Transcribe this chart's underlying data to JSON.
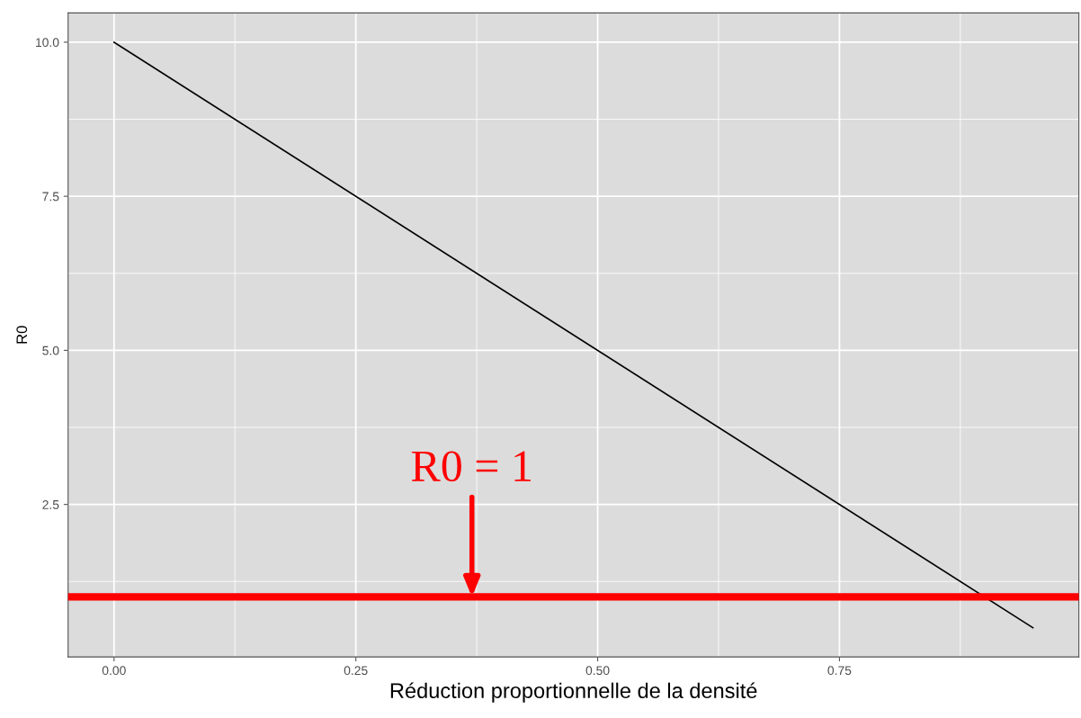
{
  "chart_data": {
    "type": "line",
    "xlabel": "Réduction proportionnelle de la densité",
    "ylabel": "R0",
    "series": [
      {
        "x": [
          0,
          0.95
        ],
        "values": [
          10,
          0.5
        ],
        "color": "#000000"
      }
    ],
    "xlim": [
      -0.0475,
      0.9975
    ],
    "ylim": [
      0.025,
      10.475
    ],
    "xticks": [
      {
        "value": 0,
        "label": "0.00"
      },
      {
        "value": 0.25,
        "label": "0.25"
      },
      {
        "value": 0.5,
        "label": "0.50"
      },
      {
        "value": 0.75,
        "label": "0.75"
      }
    ],
    "yticks": [
      {
        "value": 2.5,
        "label": "2.5"
      },
      {
        "value": 5,
        "label": "5.0"
      },
      {
        "value": 7.5,
        "label": "7.5"
      },
      {
        "value": 10,
        "label": "10.0"
      }
    ],
    "grid": true,
    "marker": "none",
    "line_style": "solid",
    "ref_lines": [
      {
        "axis": "y",
        "value": 1,
        "label": null,
        "color": "#ff0000"
      }
    ],
    "annotations": [
      {
        "text": "R0 = 1",
        "x": 0.37,
        "y": 1
      }
    ]
  }
}
